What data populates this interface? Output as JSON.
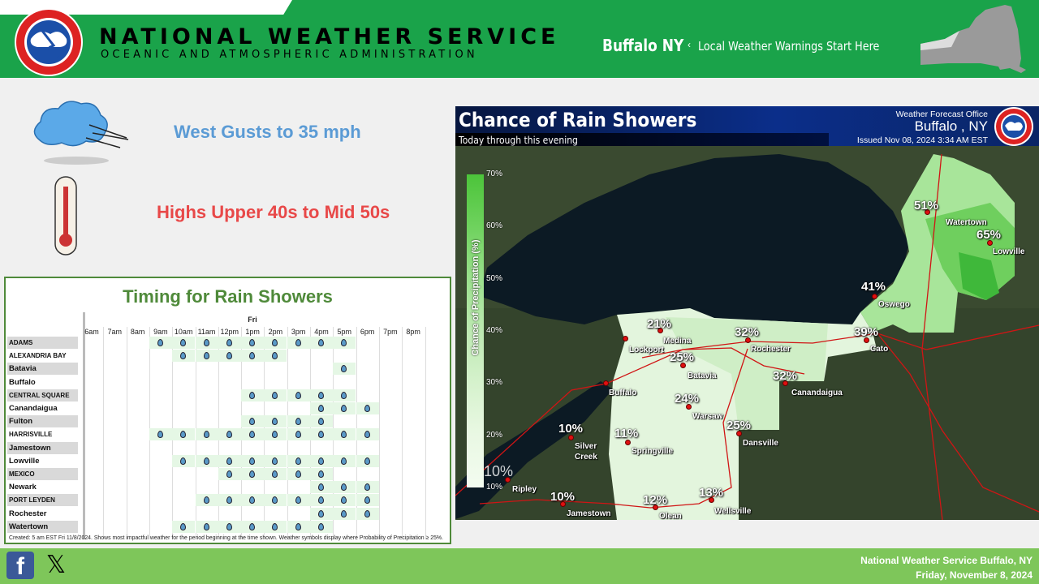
{
  "header": {
    "agency": "NATIONAL WEATHER SERVICE",
    "agency_sub": "OCEANIC AND ATMOSPHERIC ADMINISTRATION",
    "office": "Buffalo NY",
    "tagline": "Local Weather Warnings Start Here",
    "separator": "‹",
    "colors": {
      "brand_green": "#1aa34a"
    }
  },
  "highlights": {
    "wind": {
      "text": "West Gusts to 35 mph",
      "icon": "windy-cloud-icon",
      "color": "#5b9bd5"
    },
    "temp": {
      "text": "Highs Upper 40s to Mid 50s",
      "icon": "thermometer-icon",
      "color": "#e84848"
    }
  },
  "timing": {
    "title": "Timing for Rain Showers",
    "day": "Fri",
    "hours": [
      "6am",
      "7am",
      "8am",
      "9am",
      "10am",
      "11am",
      "12pm",
      "1pm",
      "2pm",
      "3pm",
      "4pm",
      "5pm",
      "6pm",
      "7pm",
      "8pm"
    ],
    "rows": [
      {
        "name": "ADAMS",
        "caps": true,
        "rain": [
          "9am",
          "10am",
          "11am",
          "12pm",
          "1pm",
          "2pm",
          "3pm",
          "4pm",
          "5pm"
        ]
      },
      {
        "name": "ALEXANDRIA BAY",
        "caps": true,
        "rain": [
          "10am",
          "11am",
          "12pm",
          "1pm",
          "2pm"
        ]
      },
      {
        "name": "Batavia",
        "caps": false,
        "rain": [
          "5pm"
        ]
      },
      {
        "name": "Buffalo",
        "caps": false,
        "rain": []
      },
      {
        "name": "CENTRAL SQUARE",
        "caps": true,
        "rain": [
          "1pm",
          "2pm",
          "3pm",
          "4pm",
          "5pm"
        ]
      },
      {
        "name": "Canandaigua",
        "caps": false,
        "rain": [
          "4pm",
          "5pm",
          "6pm"
        ]
      },
      {
        "name": "Fulton",
        "caps": false,
        "rain": [
          "1pm",
          "2pm",
          "3pm",
          "4pm"
        ]
      },
      {
        "name": "HARRISVILLE",
        "caps": true,
        "rain": [
          "9am",
          "10am",
          "11am",
          "12pm",
          "1pm",
          "2pm",
          "3pm",
          "4pm",
          "5pm",
          "6pm"
        ]
      },
      {
        "name": "Jamestown",
        "caps": false,
        "rain": []
      },
      {
        "name": "Lowville",
        "caps": false,
        "rain": [
          "10am",
          "11am",
          "12pm",
          "1pm",
          "2pm",
          "3pm",
          "4pm",
          "5pm",
          "6pm"
        ]
      },
      {
        "name": "MEXICO",
        "caps": true,
        "rain": [
          "12pm",
          "1pm",
          "2pm",
          "3pm",
          "4pm"
        ]
      },
      {
        "name": "Newark",
        "caps": false,
        "rain": [
          "4pm",
          "5pm",
          "6pm"
        ]
      },
      {
        "name": "PORT LEYDEN",
        "caps": true,
        "rain": [
          "11am",
          "12pm",
          "1pm",
          "2pm",
          "3pm",
          "4pm",
          "5pm",
          "6pm"
        ]
      },
      {
        "name": "Rochester",
        "caps": false,
        "rain": [
          "4pm",
          "5pm",
          "6pm"
        ]
      },
      {
        "name": "Watertown",
        "caps": false,
        "rain": [
          "10am",
          "11am",
          "12pm",
          "1pm",
          "2pm",
          "3pm",
          "4pm"
        ]
      }
    ],
    "footnote": "Created: 5 am EST Fri 11/8/2024. Shows most impactful weather for the period beginning at the time shown. Weather symbols display where Probability of Precipitation ≥ 25%."
  },
  "map": {
    "title": "Chance of Rain Showers",
    "subtitle": "Today through this evening",
    "wfo_label": "Weather Forecast Office",
    "wfo_city": "Buffalo , NY",
    "issued": "Issued Nov 08, 2024 3:34 AM EST",
    "legend": {
      "title": "Chance of Precipitation (%)",
      "ticks": [
        "70%",
        "60%",
        "50%",
        "40%",
        "30%",
        "20%",
        "10%"
      ],
      "big_label": "10%"
    },
    "points": [
      {
        "city": "Watertown",
        "pct": "51%"
      },
      {
        "city": "Lowville",
        "pct": "65%"
      },
      {
        "city": "Oswego",
        "pct": "41%"
      },
      {
        "city": "Cato",
        "pct": "39%"
      },
      {
        "city": "Medina",
        "pct": "21%"
      },
      {
        "city": "Lockport",
        "pct": ""
      },
      {
        "city": "Rochester",
        "pct": "32%"
      },
      {
        "city": "Batavia",
        "pct": "25%"
      },
      {
        "city": "Canandaigua",
        "pct": "32%"
      },
      {
        "city": "Warsaw",
        "pct": "24%"
      },
      {
        "city": "Dansville",
        "pct": "25%"
      },
      {
        "city": "Buffalo",
        "pct": ""
      },
      {
        "city": "Silver Creek",
        "pct": "10%"
      },
      {
        "city": "Springville",
        "pct": "11%"
      },
      {
        "city": "Ripley",
        "pct": ""
      },
      {
        "city": "Jamestown",
        "pct": "10%"
      },
      {
        "city": "Olean",
        "pct": "12%"
      },
      {
        "city": "Wellsville",
        "pct": "13%"
      }
    ]
  },
  "footer": {
    "line1": "National Weather  Service Buffalo, NY",
    "line2": "Friday, November 8, 2024",
    "facebook": "f",
    "x": "𝕏"
  }
}
